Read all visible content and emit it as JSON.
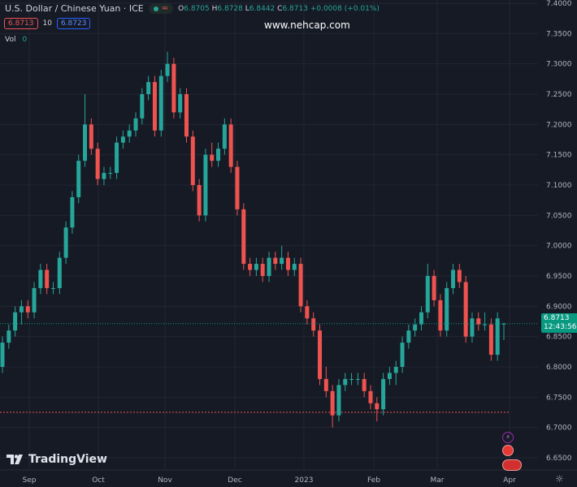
{
  "header": {
    "title": "U.S. Dollar / Chinese Yuan · ICE",
    "ohlc": {
      "o_label": "O",
      "o": "6.8705",
      "h_label": "H",
      "h": "6.8728",
      "l_label": "L",
      "l": "6.8442",
      "c_label": "C",
      "c": "6.8713",
      "change": "+0.0008 (+0.01%)"
    },
    "sell_price": "6.8713",
    "spread": "10",
    "buy_price": "6.8723",
    "vol_label": "Vol",
    "vol_value": "0"
  },
  "watermark": "www.nehcap.com",
  "brand": "TradingView",
  "price_label": {
    "price": "6.8713",
    "countdown": "12:43:56"
  },
  "colors": {
    "up": "#26a69a",
    "down": "#ef5350",
    "background": "#161a25",
    "grid": "#232733",
    "last_price": "#089981"
  },
  "chart_data": {
    "type": "candlestick",
    "title": "U.S. Dollar / Chinese Yuan · ICE",
    "y_ticks": [
      "7.4000",
      "7.3500",
      "7.3000",
      "7.2500",
      "7.2000",
      "7.1500",
      "7.1000",
      "7.0500",
      "7.0000",
      "6.9500",
      "6.9000",
      "6.8500",
      "6.8000",
      "6.7500",
      "6.7000",
      "6.6500"
    ],
    "ylim": [
      6.64,
      7.4
    ],
    "x_ticks": [
      "Sep",
      "Oct",
      "Nov",
      "Dec",
      "2023",
      "Feb",
      "Mar",
      "Apr"
    ],
    "grid": true,
    "reference_line": 6.725,
    "candles_ohlc": [
      [
        6.8,
        6.85,
        6.79,
        6.84
      ],
      [
        6.84,
        6.87,
        6.83,
        6.86
      ],
      [
        6.86,
        6.9,
        6.85,
        6.89
      ],
      [
        6.89,
        6.91,
        6.87,
        6.9
      ],
      [
        6.9,
        6.91,
        6.88,
        6.89
      ],
      [
        6.89,
        6.94,
        6.88,
        6.93
      ],
      [
        6.93,
        6.97,
        6.92,
        6.96
      ],
      [
        6.96,
        6.97,
        6.92,
        6.93
      ],
      [
        6.93,
        6.94,
        6.92,
        6.93
      ],
      [
        6.93,
        6.99,
        6.92,
        6.98
      ],
      [
        6.98,
        7.04,
        6.97,
        7.03
      ],
      [
        7.03,
        7.09,
        7.02,
        7.08
      ],
      [
        7.08,
        7.15,
        7.07,
        7.14
      ],
      [
        7.14,
        7.25,
        7.13,
        7.2
      ],
      [
        7.2,
        7.21,
        7.15,
        7.16
      ],
      [
        7.16,
        7.17,
        7.1,
        7.11
      ],
      [
        7.11,
        7.13,
        7.1,
        7.12
      ],
      [
        7.12,
        7.13,
        7.11,
        7.12
      ],
      [
        7.12,
        7.18,
        7.11,
        7.17
      ],
      [
        7.17,
        7.19,
        7.16,
        7.18
      ],
      [
        7.18,
        7.2,
        7.17,
        7.19
      ],
      [
        7.19,
        7.22,
        7.18,
        7.21
      ],
      [
        7.21,
        7.26,
        7.2,
        7.25
      ],
      [
        7.25,
        7.28,
        7.24,
        7.27
      ],
      [
        7.27,
        7.28,
        7.18,
        7.19
      ],
      [
        7.19,
        7.29,
        7.18,
        7.28
      ],
      [
        7.28,
        7.32,
        7.27,
        7.3
      ],
      [
        7.3,
        7.31,
        7.21,
        7.22
      ],
      [
        7.22,
        7.26,
        7.21,
        7.25
      ],
      [
        7.25,
        7.26,
        7.17,
        7.18
      ],
      [
        7.18,
        7.19,
        7.09,
        7.1
      ],
      [
        7.1,
        7.11,
        7.04,
        7.05
      ],
      [
        7.05,
        7.16,
        7.04,
        7.15
      ],
      [
        7.15,
        7.17,
        7.13,
        7.14
      ],
      [
        7.14,
        7.17,
        7.13,
        7.16
      ],
      [
        7.16,
        7.21,
        7.15,
        7.2
      ],
      [
        7.2,
        7.21,
        7.12,
        7.13
      ],
      [
        7.13,
        7.14,
        7.05,
        7.06
      ],
      [
        7.06,
        7.07,
        6.96,
        6.97
      ],
      [
        6.97,
        6.98,
        6.95,
        6.96
      ],
      [
        6.96,
        6.98,
        6.95,
        6.97
      ],
      [
        6.97,
        6.98,
        6.94,
        6.95
      ],
      [
        6.95,
        6.99,
        6.94,
        6.98
      ],
      [
        6.98,
        6.99,
        6.96,
        6.97
      ],
      [
        6.97,
        7.0,
        6.96,
        6.98
      ],
      [
        6.98,
        6.99,
        6.95,
        6.96
      ],
      [
        6.96,
        6.98,
        6.95,
        6.97
      ],
      [
        6.97,
        6.98,
        6.89,
        6.9
      ],
      [
        6.9,
        6.91,
        6.87,
        6.88
      ],
      [
        6.88,
        6.89,
        6.85,
        6.86
      ],
      [
        6.86,
        6.87,
        6.77,
        6.78
      ],
      [
        6.78,
        6.8,
        6.75,
        6.76
      ],
      [
        6.76,
        6.77,
        6.7,
        6.72
      ],
      [
        6.72,
        6.78,
        6.71,
        6.77
      ],
      [
        6.77,
        6.79,
        6.76,
        6.78
      ],
      [
        6.78,
        6.79,
        6.77,
        6.78
      ],
      [
        6.78,
        6.79,
        6.77,
        6.78
      ],
      [
        6.78,
        6.79,
        6.75,
        6.76
      ],
      [
        6.76,
        6.77,
        6.73,
        6.74
      ],
      [
        6.74,
        6.75,
        6.71,
        6.73
      ],
      [
        6.73,
        6.79,
        6.72,
        6.78
      ],
      [
        6.78,
        6.8,
        6.77,
        6.79
      ],
      [
        6.79,
        6.81,
        6.77,
        6.8
      ],
      [
        6.8,
        6.85,
        6.79,
        6.84
      ],
      [
        6.84,
        6.87,
        6.83,
        6.86
      ],
      [
        6.86,
        6.88,
        6.85,
        6.87
      ],
      [
        6.87,
        6.9,
        6.86,
        6.89
      ],
      [
        6.89,
        6.97,
        6.88,
        6.95
      ],
      [
        6.95,
        6.96,
        6.9,
        6.91
      ],
      [
        6.91,
        6.92,
        6.85,
        6.86
      ],
      [
        6.86,
        6.94,
        6.85,
        6.93
      ],
      [
        6.93,
        6.97,
        6.92,
        6.96
      ],
      [
        6.96,
        6.97,
        6.93,
        6.94
      ],
      [
        6.94,
        6.95,
        6.84,
        6.85
      ],
      [
        6.85,
        6.89,
        6.84,
        6.88
      ],
      [
        6.88,
        6.89,
        6.86,
        6.87
      ],
      [
        6.87,
        6.89,
        6.86,
        6.87
      ],
      [
        6.87,
        6.88,
        6.81,
        6.82
      ],
      [
        6.82,
        6.89,
        6.81,
        6.88
      ],
      [
        6.8705,
        6.8728,
        6.8442,
        6.8713
      ]
    ]
  }
}
